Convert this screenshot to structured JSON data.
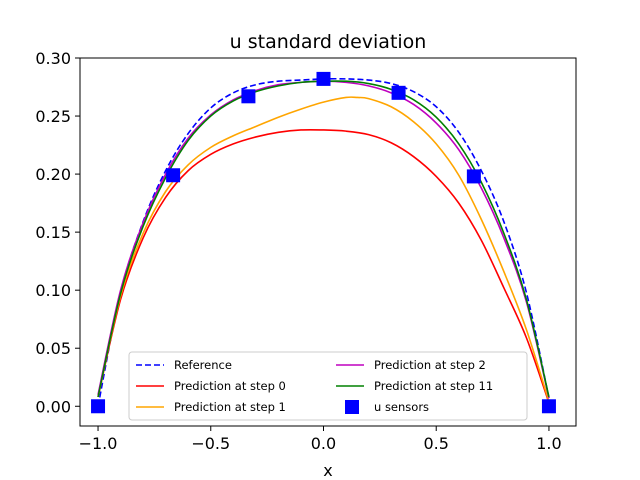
{
  "chart_data": {
    "type": "line",
    "title": "u standard deviation",
    "xlabel": "x",
    "ylabel": "",
    "xlim": [
      -1.08,
      1.12
    ],
    "ylim": [
      -0.017,
      0.3
    ],
    "xticks": [
      -1.0,
      -0.5,
      0.0,
      0.5,
      1.0
    ],
    "xtick_labels": [
      "−1.0",
      "−0.5",
      "0.0",
      "0.5",
      "1.0"
    ],
    "yticks": [
      0.0,
      0.05,
      0.1,
      0.15,
      0.2,
      0.25,
      0.3
    ],
    "ytick_labels": [
      "0.00",
      "0.05",
      "0.10",
      "0.15",
      "0.20",
      "0.25",
      "0.30"
    ],
    "legend_position": "lower-center",
    "series": [
      {
        "name": "Reference",
        "style": "dashed",
        "color": "#0000ff",
        "x": [
          -1.0,
          -0.9,
          -0.8,
          -0.7,
          -0.6,
          -0.5,
          -0.4,
          -0.3,
          -0.2,
          -0.1,
          0.0,
          0.1,
          0.2,
          0.3,
          0.4,
          0.5,
          0.6,
          0.7,
          0.8,
          0.9,
          1.0
        ],
        "y": [
          0.0,
          0.098,
          0.159,
          0.203,
          0.235,
          0.257,
          0.27,
          0.277,
          0.28,
          0.281,
          0.282,
          0.282,
          0.281,
          0.278,
          0.271,
          0.258,
          0.236,
          0.203,
          0.159,
          0.098,
          0.007
        ]
      },
      {
        "name": "Prediction at step 0",
        "style": "solid",
        "color": "#ff0000",
        "x": [
          -1.0,
          -0.9,
          -0.8,
          -0.7,
          -0.6,
          -0.5,
          -0.4,
          -0.3,
          -0.2,
          -0.1,
          0.0,
          0.1,
          0.2,
          0.3,
          0.4,
          0.5,
          0.6,
          0.7,
          0.8,
          0.9,
          1.0
        ],
        "y": [
          0.008,
          0.092,
          0.145,
          0.18,
          0.203,
          0.217,
          0.226,
          0.232,
          0.236,
          0.238,
          0.238,
          0.237,
          0.234,
          0.227,
          0.215,
          0.198,
          0.175,
          0.143,
          0.102,
          0.059,
          0.003
        ]
      },
      {
        "name": "Prediction at step 1",
        "style": "solid",
        "color": "#ffa500",
        "x": [
          -1.0,
          -0.9,
          -0.8,
          -0.7,
          -0.6,
          -0.5,
          -0.4,
          -0.3,
          -0.2,
          -0.1,
          0.0,
          0.1,
          0.15,
          0.2,
          0.3,
          0.4,
          0.5,
          0.6,
          0.7,
          0.8,
          0.9,
          1.0
        ],
        "y": [
          0.008,
          0.095,
          0.149,
          0.185,
          0.208,
          0.223,
          0.233,
          0.241,
          0.249,
          0.256,
          0.262,
          0.266,
          0.266,
          0.265,
          0.258,
          0.245,
          0.226,
          0.199,
          0.161,
          0.116,
          0.066,
          0.004
        ]
      },
      {
        "name": "Prediction at step 2",
        "style": "solid",
        "color": "#bf00bf",
        "x": [
          -1.0,
          -0.9,
          -0.8,
          -0.7,
          -0.6,
          -0.5,
          -0.4,
          -0.3,
          -0.2,
          -0.1,
          0.0,
          0.1,
          0.2,
          0.3,
          0.4,
          0.5,
          0.6,
          0.7,
          0.8,
          0.9,
          1.0
        ],
        "y": [
          0.01,
          0.1,
          0.158,
          0.2,
          0.231,
          0.251,
          0.264,
          0.272,
          0.277,
          0.279,
          0.28,
          0.279,
          0.276,
          0.27,
          0.26,
          0.244,
          0.221,
          0.188,
          0.145,
          0.09,
          0.007
        ]
      },
      {
        "name": "Prediction at step 11",
        "style": "solid",
        "color": "#008000",
        "x": [
          -1.0,
          -0.9,
          -0.8,
          -0.7,
          -0.6,
          -0.5,
          -0.4,
          -0.3,
          -0.2,
          -0.1,
          0.0,
          0.1,
          0.2,
          0.3,
          0.4,
          0.5,
          0.6,
          0.7,
          0.8,
          0.9,
          1.0
        ],
        "y": [
          0.008,
          0.097,
          0.155,
          0.197,
          0.229,
          0.25,
          0.263,
          0.271,
          0.276,
          0.279,
          0.28,
          0.28,
          0.278,
          0.273,
          0.264,
          0.249,
          0.226,
          0.193,
          0.149,
          0.092,
          0.008
        ]
      },
      {
        "name": "u sensors",
        "style": "markers",
        "marker": "square",
        "color": "#0000ff",
        "x": [
          -1.0,
          -0.667,
          -0.333,
          0.0,
          0.333,
          0.667,
          1.0
        ],
        "y": [
          0.0,
          0.199,
          0.267,
          0.282,
          0.27,
          0.198,
          0.0
        ]
      }
    ]
  }
}
